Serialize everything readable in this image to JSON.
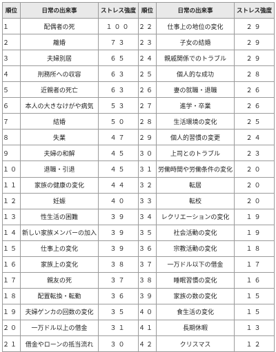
{
  "headers": {
    "rank": "順位",
    "event": "日常の出来事",
    "score": "ストレス強度"
  },
  "left": [
    {
      "rank": "１",
      "event": "配偶者の死",
      "score": "１００"
    },
    {
      "rank": "２",
      "event": "離婚",
      "score": "７３"
    },
    {
      "rank": "３",
      "event": "夫婦別居",
      "score": "６５"
    },
    {
      "rank": "４",
      "event": "刑務所への収容",
      "score": "６３"
    },
    {
      "rank": "５",
      "event": "近親者の死亡",
      "score": "６３"
    },
    {
      "rank": "６",
      "event": "本人の大きなけがや病気",
      "score": "５３"
    },
    {
      "rank": "７",
      "event": "結婚",
      "score": "５０"
    },
    {
      "rank": "８",
      "event": "失業",
      "score": "４７"
    },
    {
      "rank": "９",
      "event": "夫婦の和解",
      "score": "４５"
    },
    {
      "rank": "１０",
      "event": "退職・引退",
      "score": "４５"
    },
    {
      "rank": "１１",
      "event": "家族の健康の変化",
      "score": "４４"
    },
    {
      "rank": "１２",
      "event": "妊娠",
      "score": "４０"
    },
    {
      "rank": "１３",
      "event": "性生活の困難",
      "score": "３９"
    },
    {
      "rank": "１４",
      "event": "新しい家族メンバーの加入",
      "score": "３９"
    },
    {
      "rank": "１５",
      "event": "仕事上の変化",
      "score": "３９"
    },
    {
      "rank": "１６",
      "event": "家族上の変化",
      "score": "３８"
    },
    {
      "rank": "１７",
      "event": "親友の死",
      "score": "３７"
    },
    {
      "rank": "１８",
      "event": "配置転換・転勤",
      "score": "３６"
    },
    {
      "rank": "１９",
      "event": "夫婦ゲンカの回数の変化",
      "score": "３５"
    },
    {
      "rank": "２０",
      "event": "一万ドル以上の借金",
      "score": "３１"
    },
    {
      "rank": "２１",
      "event": "借金やローンの抵当流れ",
      "score": "３０"
    }
  ],
  "right": [
    {
      "rank": "２２",
      "event": "仕事上の地位の変化",
      "score": "２９"
    },
    {
      "rank": "２３",
      "event": "子女の結婚",
      "score": "２９"
    },
    {
      "rank": "２４",
      "event": "親戚関係でのトラブル",
      "score": "２９"
    },
    {
      "rank": "２５",
      "event": "個人的な成功",
      "score": "２８"
    },
    {
      "rank": "２６",
      "event": "妻の就職・退職",
      "score": "２６"
    },
    {
      "rank": "２７",
      "event": "進学・卒業",
      "score": "２６"
    },
    {
      "rank": "２８",
      "event": "生活環境の変化",
      "score": "２５"
    },
    {
      "rank": "２９",
      "event": "個人的習慣の変更",
      "score": "２４"
    },
    {
      "rank": "３０",
      "event": "上司とのトラブル",
      "score": "２３"
    },
    {
      "rank": "３１",
      "event": "労働時間や労働条件の変化",
      "score": "２０"
    },
    {
      "rank": "３２",
      "event": "転居",
      "score": "２０"
    },
    {
      "rank": "３３",
      "event": "転校",
      "score": "２０"
    },
    {
      "rank": "３４",
      "event": "レクリエーションの変化",
      "score": "１９"
    },
    {
      "rank": "３５",
      "event": "社会活動の変化",
      "score": "１９"
    },
    {
      "rank": "３６",
      "event": "宗教活動の変化",
      "score": "１８"
    },
    {
      "rank": "３７",
      "event": "一万ドル以下の借金",
      "score": "１７"
    },
    {
      "rank": "３８",
      "event": "睡眠習慣の変化",
      "score": "１６"
    },
    {
      "rank": "３９",
      "event": "家族の数の変化",
      "score": "１５"
    },
    {
      "rank": "４０",
      "event": "食生活の変化",
      "score": "１５"
    },
    {
      "rank": "４１",
      "event": "長期休暇",
      "score": "１３"
    },
    {
      "rank": "４２",
      "event": "クリスマス",
      "score": "１２"
    }
  ]
}
